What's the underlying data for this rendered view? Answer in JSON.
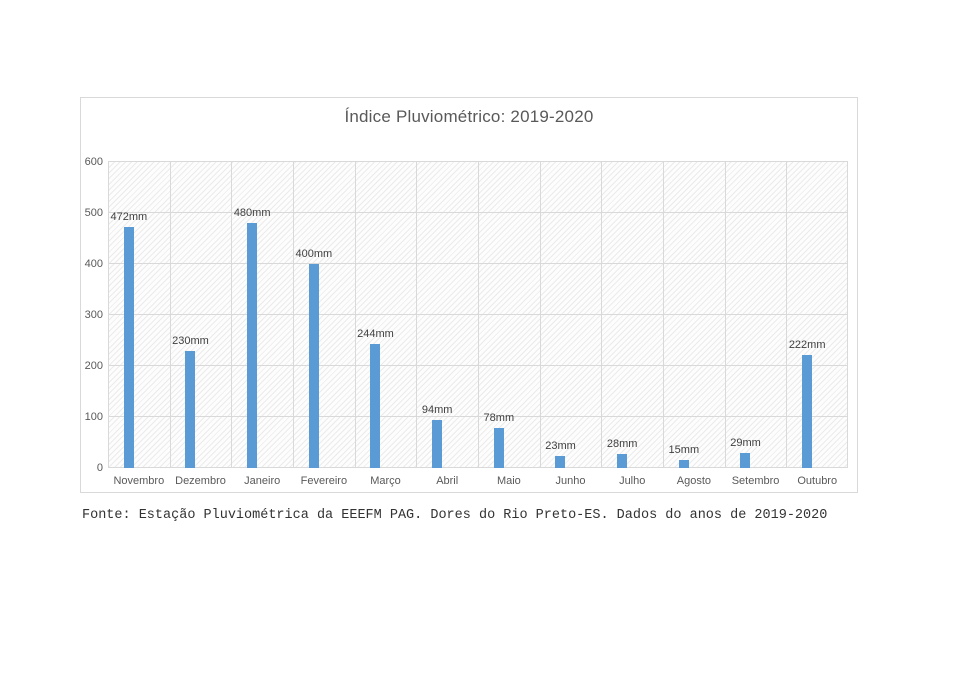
{
  "chart_data": {
    "type": "bar",
    "title": "Índice Pluviométrico: 2019-2020",
    "categories": [
      "Novembro",
      "Dezembro",
      "Janeiro",
      "Fevereiro",
      "Março",
      "Abril",
      "Maio",
      "Junho",
      "Julho",
      "Agosto",
      "Setembro",
      "Outubro"
    ],
    "values": [
      472,
      230,
      480,
      400,
      244,
      94,
      78,
      23,
      28,
      15,
      29,
      222
    ],
    "bar_labels": [
      "472mm",
      "230mm",
      "480mm",
      "400mm",
      "244mm",
      "94mm",
      "78mm",
      "23mm",
      "28mm",
      "15mm",
      "29mm",
      "222mm"
    ],
    "unit": "mm",
    "xlabel": "",
    "ylabel": "",
    "ylim": [
      0,
      600
    ],
    "yticks": [
      0,
      100,
      200,
      300,
      400,
      500,
      600
    ],
    "grid": true,
    "legend_position": "none",
    "colors": {
      "bar": "#5b9bd5",
      "gridline": "#d9d9d9",
      "title_text": "#595959",
      "tick_label_text": "#595959",
      "data_label_text": "#404040",
      "plot_hatch": "#ebebeb",
      "frame_border": "#d9d9d9"
    }
  },
  "caption": {
    "text": "Fonte: Estação Pluviométrica da EEEFM PAG. Dores do Rio Preto-ES. Dados do anos de 2019-2020"
  }
}
